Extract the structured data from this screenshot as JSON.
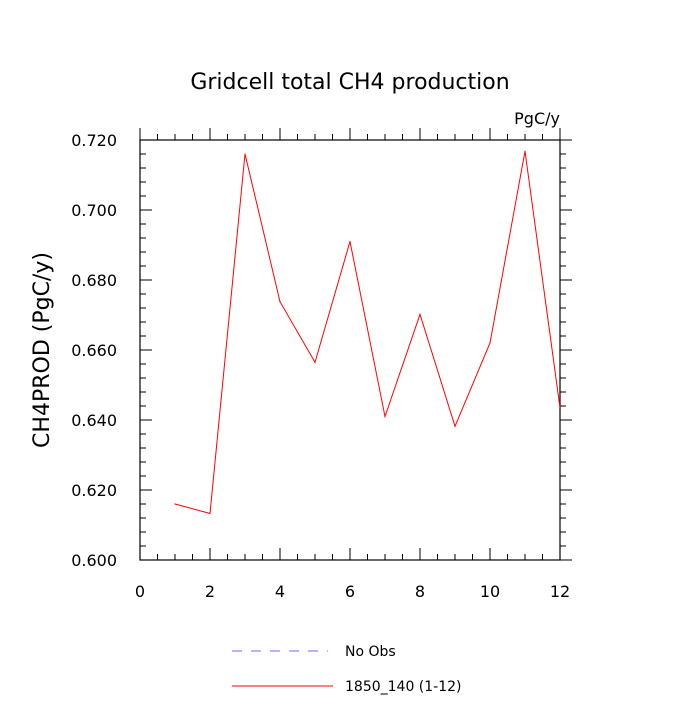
{
  "chart_data": {
    "type": "line",
    "title": "Gridcell total CH4 production",
    "units": "PgC/y",
    "xlabel": "",
    "ylabel": "CH4PROD  (PgC/y)",
    "xlim": [
      0,
      12
    ],
    "ylim": [
      0.6,
      0.72
    ],
    "x_ticks": [
      "0",
      "2",
      "4",
      "6",
      "8",
      "10",
      "12"
    ],
    "y_ticks": [
      "0.600",
      "0.620",
      "0.640",
      "0.660",
      "0.680",
      "0.700",
      "0.720"
    ],
    "x": [
      1,
      2,
      3,
      4,
      5,
      6,
      7,
      8,
      9,
      10,
      11,
      12
    ],
    "series": [
      {
        "name": "1850_140 (1-12)",
        "color": "#ff0000",
        "values": [
          0.616,
          0.6133,
          0.716,
          0.6738,
          0.6565,
          0.691,
          0.641,
          0.6702,
          0.6382,
          0.662,
          0.7168,
          0.6435
        ]
      }
    ],
    "legend": [
      {
        "label": "No Obs",
        "color": "#6b6bff",
        "style": "dashed"
      },
      {
        "label": "1850_140 (1-12)",
        "color": "#ff0000",
        "style": "solid"
      }
    ],
    "grid": false,
    "legend_placement": "bottom"
  }
}
